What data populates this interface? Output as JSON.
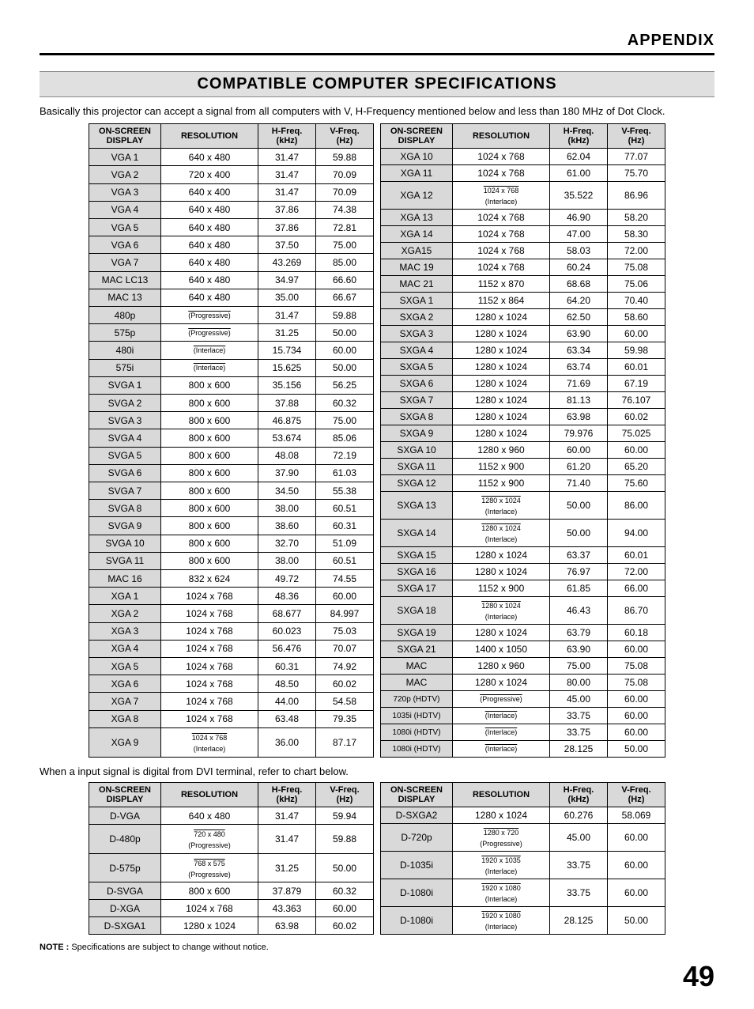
{
  "appendix_label": "APPENDIX",
  "section_title": "COMPATIBLE COMPUTER SPECIFICATIONS",
  "intro_text": "Basically this projector can accept a signal from all computers with V, H-Frequency mentioned below and less than 180 MHz of Dot Clock.",
  "headers": {
    "display": "ON-SCREEN DISPLAY",
    "resolution": "RESOLUTION",
    "hfreq": "H-Freq. (kHz)",
    "vfreq": "V-Freq. (Hz)"
  },
  "main_left": [
    {
      "d": "VGA 1",
      "r": "640 x 480",
      "h": "31.47",
      "v": "59.88"
    },
    {
      "d": "VGA 2",
      "r": "720 x 400",
      "h": "31.47",
      "v": "70.09"
    },
    {
      "d": "VGA 3",
      "r": "640 x 400",
      "h": "31.47",
      "v": "70.09"
    },
    {
      "d": "VGA 4",
      "r": "640 x 480",
      "h": "37.86",
      "v": "74.38"
    },
    {
      "d": "VGA 5",
      "r": "640 x 480",
      "h": "37.86",
      "v": "72.81"
    },
    {
      "d": "VGA 6",
      "r": "640 x 480",
      "h": "37.50",
      "v": "75.00"
    },
    {
      "d": "VGA 7",
      "r": "640 x 480",
      "h": "43.269",
      "v": "85.00"
    },
    {
      "d": "MAC LC13",
      "r": "640 x 480",
      "h": "34.97",
      "v": "66.60"
    },
    {
      "d": "MAC 13",
      "r": "640 x 480",
      "h": "35.00",
      "v": "66.67"
    },
    {
      "d": "480p",
      "r": "(Progressive)",
      "h": "31.47",
      "v": "59.88",
      "sub": true,
      "over": true
    },
    {
      "d": "575p",
      "r": "(Progressive)",
      "h": "31.25",
      "v": "50.00",
      "sub": true,
      "over": true
    },
    {
      "d": "480i",
      "r": "(Interlace)",
      "h": "15.734",
      "v": "60.00",
      "sub": true,
      "over": true
    },
    {
      "d": "575i",
      "r": "(Interlace)",
      "h": "15.625",
      "v": "50.00",
      "sub": true,
      "over": true
    },
    {
      "d": "SVGA 1",
      "r": "800 x 600",
      "h": "35.156",
      "v": "56.25"
    },
    {
      "d": "SVGA 2",
      "r": "800 x 600",
      "h": "37.88",
      "v": "60.32"
    },
    {
      "d": "SVGA 3",
      "r": "800 x 600",
      "h": "46.875",
      "v": "75.00"
    },
    {
      "d": "SVGA 4",
      "r": "800 x 600",
      "h": "53.674",
      "v": "85.06"
    },
    {
      "d": "SVGA 5",
      "r": "800 x 600",
      "h": "48.08",
      "v": "72.19"
    },
    {
      "d": "SVGA 6",
      "r": "800 x 600",
      "h": "37.90",
      "v": "61.03"
    },
    {
      "d": "SVGA 7",
      "r": "800 x 600",
      "h": "34.50",
      "v": "55.38"
    },
    {
      "d": "SVGA 8",
      "r": "800 x 600",
      "h": "38.00",
      "v": "60.51"
    },
    {
      "d": "SVGA 9",
      "r": "800 x 600",
      "h": "38.60",
      "v": "60.31"
    },
    {
      "d": "SVGA 10",
      "r": "800 x 600",
      "h": "32.70",
      "v": "51.09"
    },
    {
      "d": "SVGA 11",
      "r": "800 x 600",
      "h": "38.00",
      "v": "60.51"
    },
    {
      "d": "MAC 16",
      "r": "832 x 624",
      "h": "49.72",
      "v": "74.55"
    },
    {
      "d": "XGA 1",
      "r": "1024 x 768",
      "h": "48.36",
      "v": "60.00"
    },
    {
      "d": "XGA 2",
      "r": "1024 x 768",
      "h": "68.677",
      "v": "84.997"
    },
    {
      "d": "XGA 3",
      "r": "1024 x 768",
      "h": "60.023",
      "v": "75.03"
    },
    {
      "d": "XGA 4",
      "r": "1024 x 768",
      "h": "56.476",
      "v": "70.07"
    },
    {
      "d": "XGA 5",
      "r": "1024 x 768",
      "h": "60.31",
      "v": "74.92"
    },
    {
      "d": "XGA 6",
      "r": "1024 x 768",
      "h": "48.50",
      "v": "60.02"
    },
    {
      "d": "XGA 7",
      "r": "1024 x 768",
      "h": "44.00",
      "v": "54.58"
    },
    {
      "d": "XGA 8",
      "r": "1024 x 768",
      "h": "63.48",
      "v": "79.35"
    },
    {
      "d": "XGA 9",
      "r": "1024 x 768",
      "rsub": "(Interlace)",
      "h": "36.00",
      "v": "87.17",
      "sub": true
    }
  ],
  "main_right": [
    {
      "d": "XGA 10",
      "r": "1024 x 768",
      "h": "62.04",
      "v": "77.07"
    },
    {
      "d": "XGA 11",
      "r": "1024 x 768",
      "h": "61.00",
      "v": "75.70"
    },
    {
      "d": "XGA 12",
      "r": "1024 x 768",
      "rsub": "(Interlace)",
      "h": "35.522",
      "v": "86.96",
      "sub": true
    },
    {
      "d": "XGA 13",
      "r": "1024 x 768",
      "h": "46.90",
      "v": "58.20"
    },
    {
      "d": "XGA 14",
      "r": "1024 x 768",
      "h": "47.00",
      "v": "58.30"
    },
    {
      "d": "XGA15",
      "r": "1024 x 768",
      "h": "58.03",
      "v": "72.00"
    },
    {
      "d": "MAC 19",
      "r": "1024 x 768",
      "h": "60.24",
      "v": "75.08"
    },
    {
      "d": "MAC 21",
      "r": "1152 x 870",
      "h": "68.68",
      "v": "75.06"
    },
    {
      "d": "SXGA 1",
      "r": "1152 x 864",
      "h": "64.20",
      "v": "70.40"
    },
    {
      "d": "SXGA 2",
      "r": "1280 x 1024",
      "h": "62.50",
      "v": "58.60"
    },
    {
      "d": "SXGA 3",
      "r": "1280 x 1024",
      "h": "63.90",
      "v": "60.00"
    },
    {
      "d": "SXGA 4",
      "r": "1280 x 1024",
      "h": "63.34",
      "v": "59.98"
    },
    {
      "d": "SXGA 5",
      "r": "1280 x 1024",
      "h": "63.74",
      "v": "60.01"
    },
    {
      "d": "SXGA 6",
      "r": "1280 x 1024",
      "h": "71.69",
      "v": "67.19"
    },
    {
      "d": "SXGA 7",
      "r": "1280 x 1024",
      "h": "81.13",
      "v": "76.107"
    },
    {
      "d": "SXGA 8",
      "r": "1280 x 1024",
      "h": "63.98",
      "v": "60.02"
    },
    {
      "d": "SXGA 9",
      "r": "1280 x 1024",
      "h": "79.976",
      "v": "75.025"
    },
    {
      "d": "SXGA 10",
      "r": "1280 x 960",
      "h": "60.00",
      "v": "60.00"
    },
    {
      "d": "SXGA 11",
      "r": "1152 x 900",
      "h": "61.20",
      "v": "65.20"
    },
    {
      "d": "SXGA 12",
      "r": "1152 x 900",
      "h": "71.40",
      "v": "75.60"
    },
    {
      "d": "SXGA 13",
      "r": "1280 x 1024",
      "rsub": "(Interlace)",
      "h": "50.00",
      "v": "86.00",
      "sub": true
    },
    {
      "d": "SXGA 14",
      "r": "1280 x 1024",
      "rsub": "(Interlace)",
      "h": "50.00",
      "v": "94.00",
      "sub": true
    },
    {
      "d": "SXGA 15",
      "r": "1280 x 1024",
      "h": "63.37",
      "v": "60.01"
    },
    {
      "d": "SXGA 16",
      "r": "1280 x 1024",
      "h": "76.97",
      "v": "72.00"
    },
    {
      "d": "SXGA 17",
      "r": "1152 x 900",
      "h": "61.85",
      "v": "66.00"
    },
    {
      "d": "SXGA 18",
      "r": "1280 x 1024",
      "rsub": "(Interlace)",
      "h": "46.43",
      "v": "86.70",
      "sub": true
    },
    {
      "d": "SXGA 19",
      "r": "1280 x 1024",
      "h": "63.79",
      "v": "60.18"
    },
    {
      "d": "SXGA 21",
      "r": "1400 x 1050",
      "h": "63.90",
      "v": "60.00"
    },
    {
      "d": "MAC",
      "r": "1280 x 960",
      "h": "75.00",
      "v": "75.08"
    },
    {
      "d": "MAC",
      "r": "1280 x 1024",
      "h": "80.00",
      "v": "75.08"
    },
    {
      "d": "720p (HDTV)",
      "r": "(Progressive)",
      "h": "45.00",
      "v": "60.00",
      "sub": true,
      "over": true,
      "dsmall": true
    },
    {
      "d": "1035i (HDTV)",
      "r": "(Interlace)",
      "h": "33.75",
      "v": "60.00",
      "sub": true,
      "over": true,
      "dsmall": true
    },
    {
      "d": "1080i (HDTV)",
      "r": "(Interlace)",
      "h": "33.75",
      "v": "60.00",
      "sub": true,
      "over": true,
      "dsmall": true
    },
    {
      "d": "1080i (HDTV)",
      "r": "(Interlace)",
      "h": "28.125",
      "v": "50.00",
      "sub": true,
      "over": true,
      "dsmall": true
    }
  ],
  "mid_text": "When a input signal is digital from DVI terminal, refer to chart below.",
  "dvi_left": [
    {
      "d": "D-VGA",
      "r": "640 x 480",
      "h": "31.47",
      "v": "59.94"
    },
    {
      "d": "D-480p",
      "r": "720 x 480",
      "rsub": "(Progressive)",
      "h": "31.47",
      "v": "59.88",
      "sub": true
    },
    {
      "d": "D-575p",
      "r": "768 x 575",
      "rsub": "(Progressive)",
      "h": "31.25",
      "v": "50.00",
      "sub": true
    },
    {
      "d": "D-SVGA",
      "r": "800 x 600",
      "h": "37.879",
      "v": "60.32"
    },
    {
      "d": "D-XGA",
      "r": "1024 x 768",
      "h": "43.363",
      "v": "60.00"
    },
    {
      "d": "D-SXGA1",
      "r": "1280 x 1024",
      "h": "63.98",
      "v": "60.02"
    }
  ],
  "dvi_right": [
    {
      "d": "D-SXGA2",
      "r": "1280 x 1024",
      "h": "60.276",
      "v": "58.069"
    },
    {
      "d": "D-720p",
      "r": "1280 x 720",
      "rsub": "(Progressive)",
      "h": "45.00",
      "v": "60.00",
      "sub": true
    },
    {
      "d": "D-1035i",
      "r": "1920 x 1035",
      "rsub": "(Interlace)",
      "h": "33.75",
      "v": "60.00",
      "sub": true
    },
    {
      "d": "D-1080i",
      "r": "1920 x 1080",
      "rsub": "(Interlace)",
      "h": "33.75",
      "v": "60.00",
      "sub": true
    },
    {
      "d": "D-1080i",
      "r": "1920 x 1080",
      "rsub": "(Interlace)",
      "h": "28.125",
      "v": "50.00",
      "sub": true
    }
  ],
  "note_label": "NOTE :",
  "note_text": " Specifications are subject to change without notice.",
  "page_number": "49"
}
